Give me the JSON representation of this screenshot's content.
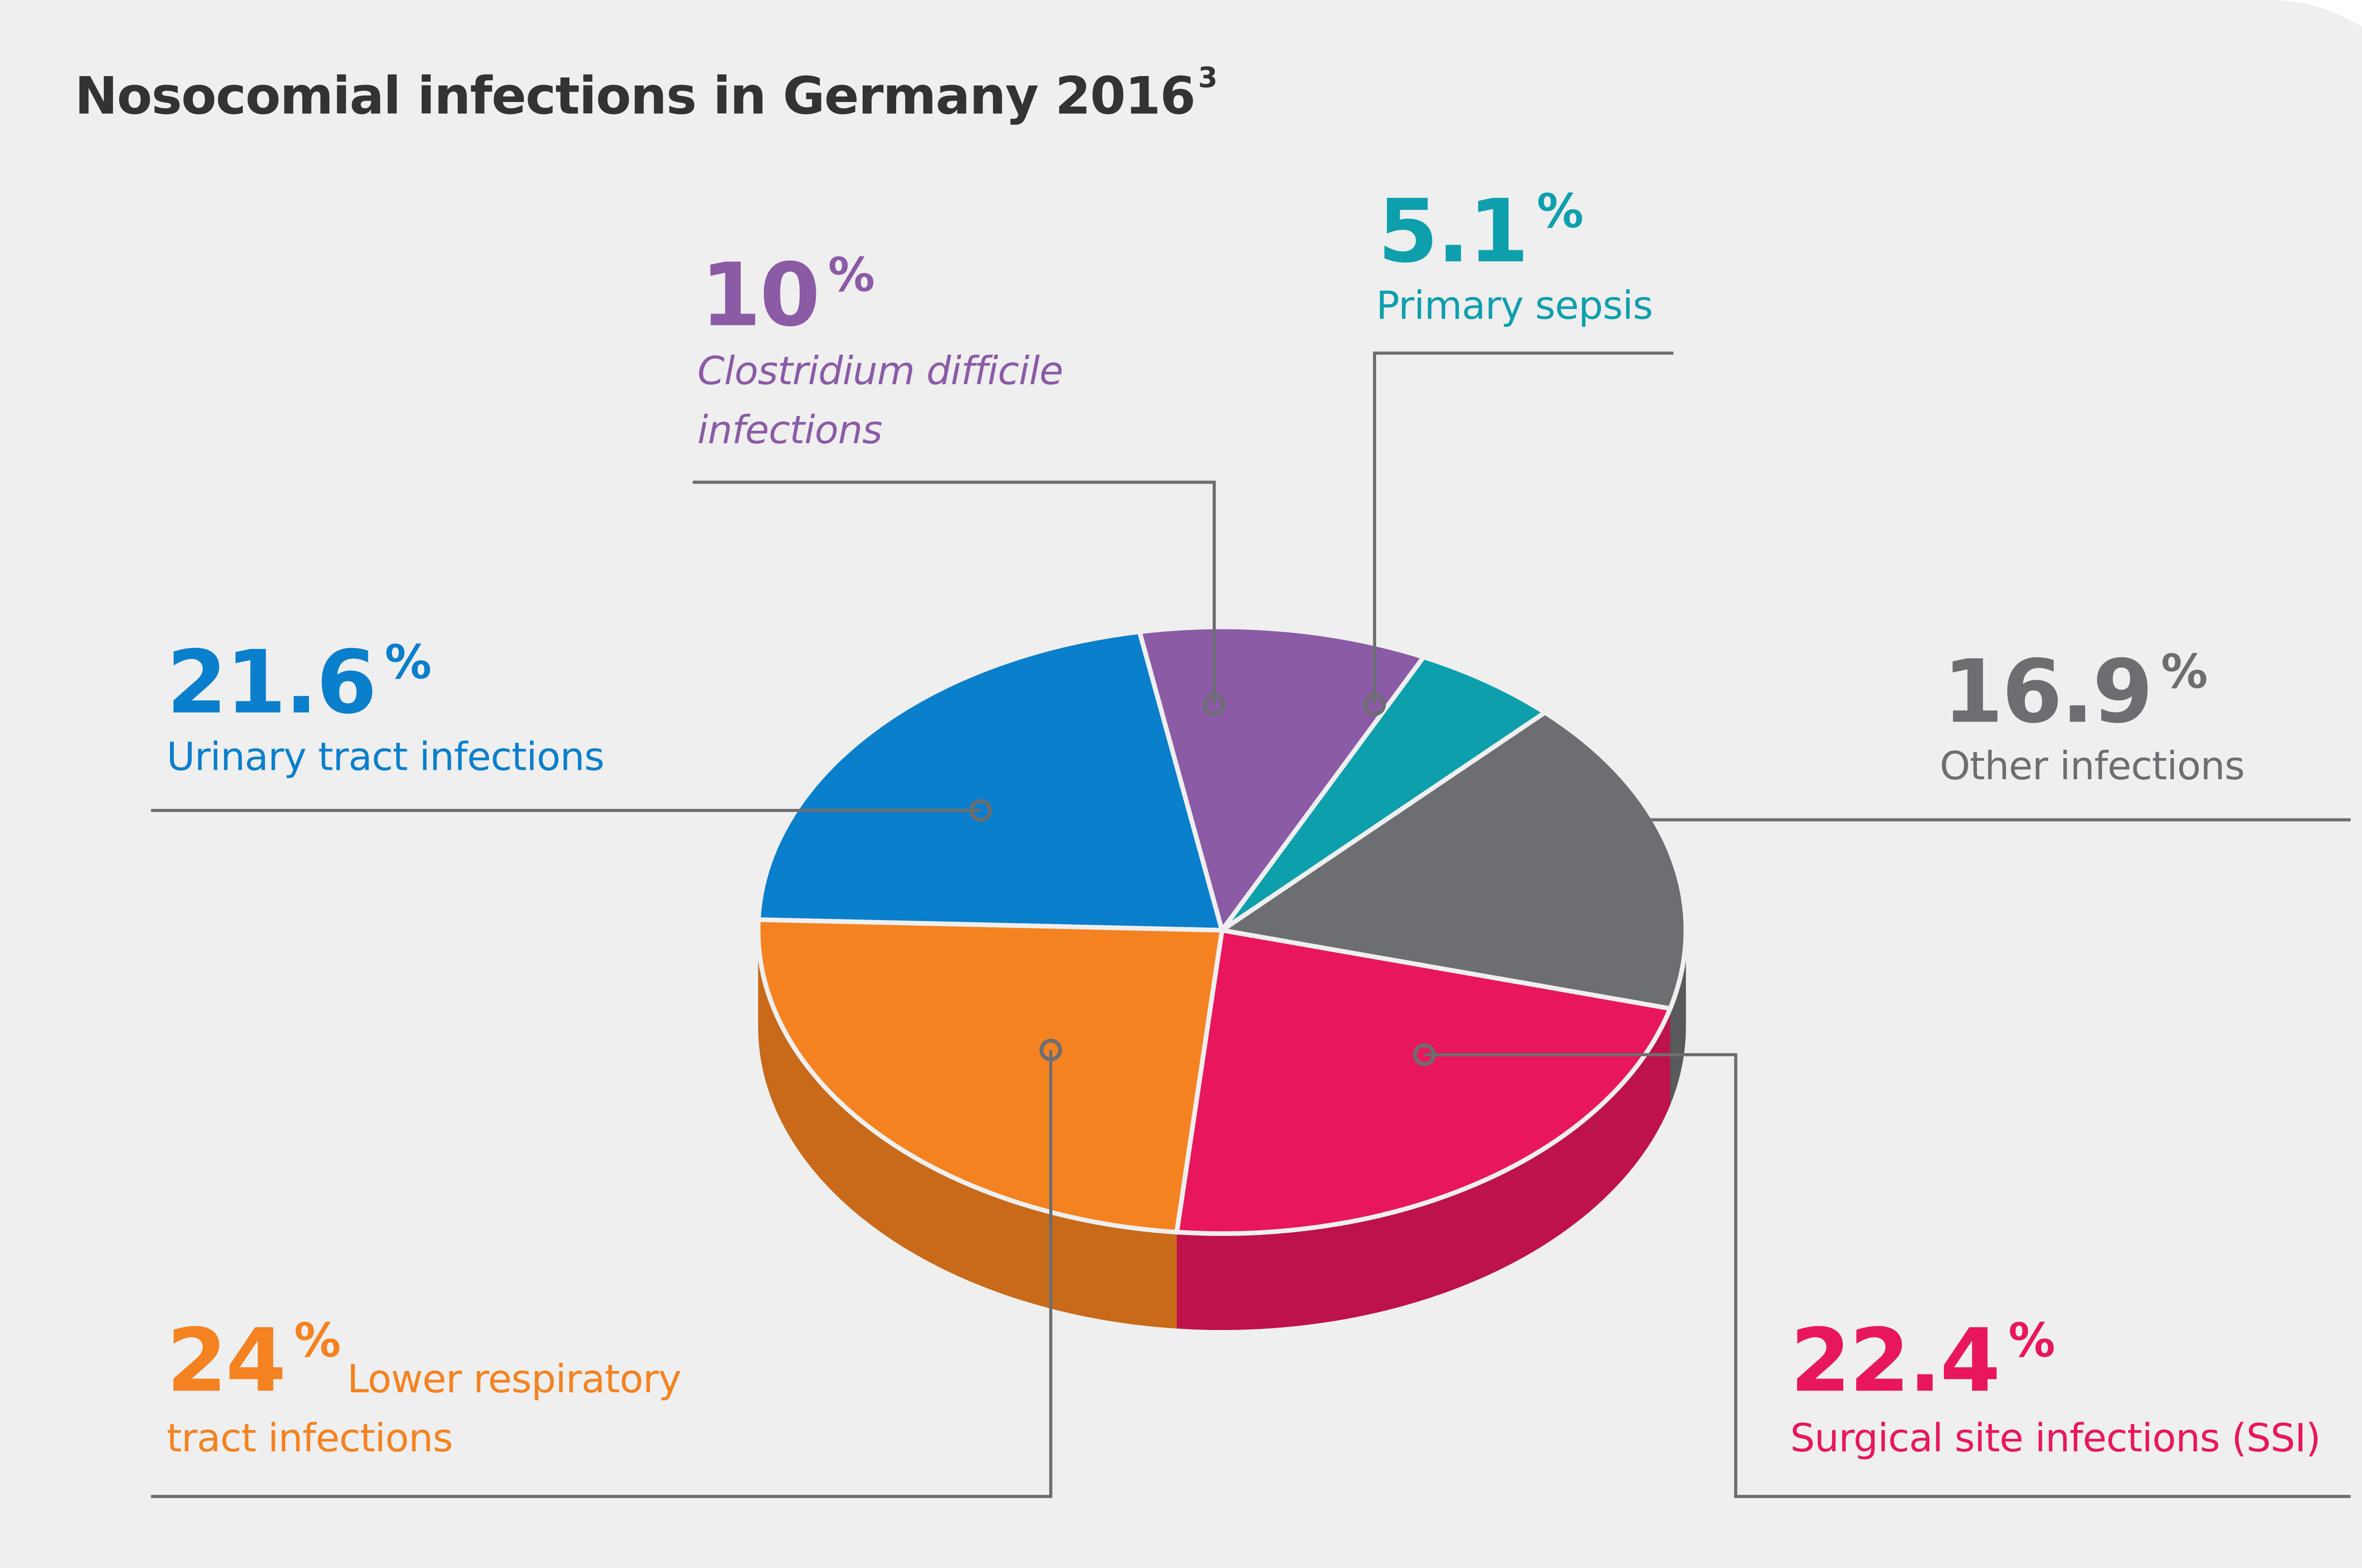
{
  "chart_data": {
    "type": "pie",
    "title": "Nosocomial infections in Germany 2016",
    "title_superscript": "3",
    "unit": "%",
    "categories": [
      "Urinary tract infections",
      "Clostridium difficile infections",
      "Primary sepsis",
      "Other infections",
      "Surgical site infections (SSI)",
      "Lower respiratory tract infections"
    ],
    "values": [
      21.6,
      10,
      5.1,
      16.9,
      22.4,
      24
    ],
    "colors": [
      "#0a7fcc",
      "#8b5ba6",
      "#0e9fad",
      "#6d6e71",
      "#e8175d",
      "#f58220"
    ]
  }
}
